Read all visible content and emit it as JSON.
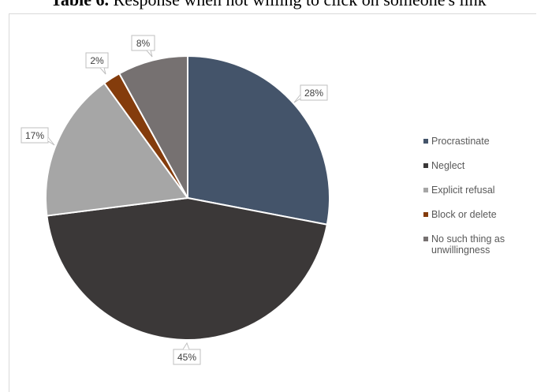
{
  "caption": {
    "bold": "Table 6.",
    "text": " Response when not willing to click on someone's link"
  },
  "chart_data": {
    "type": "pie",
    "title": "",
    "start_angle_deg": 0,
    "direction": "clockwise",
    "legend_position": "right",
    "slices": [
      {
        "name": "Procrastinate",
        "value": 28,
        "label": "28%",
        "color": "#44546a"
      },
      {
        "name": "Neglect",
        "value": 45,
        "label": "45%",
        "color": "#3b3838"
      },
      {
        "name": "Explicit refusal",
        "value": 17,
        "label": "17%",
        "color": "#a6a6a6"
      },
      {
        "name": "Block or delete",
        "value": 2,
        "label": "2%",
        "color": "#843c0c"
      },
      {
        "name": "No such thing as unwillingness",
        "value": 8,
        "label": "8%",
        "color": "#767171"
      }
    ]
  }
}
